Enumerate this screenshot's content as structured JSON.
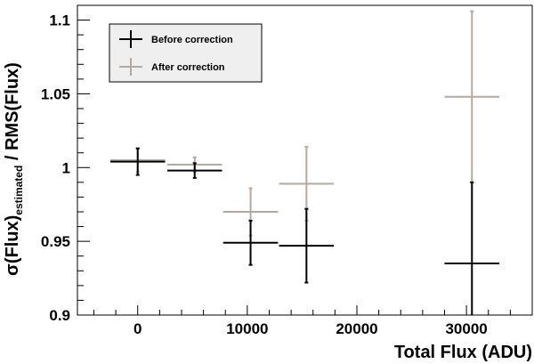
{
  "chart_data": {
    "type": "scatter",
    "xlabel": "Total Flux (ADU)",
    "ylabel": "σ(Flux)estimated / RMS(Flux)",
    "ylabel_parts": {
      "main": "σ(Flux)",
      "subscript": "estimated",
      "rest": " / RMS(Flux)"
    },
    "xlim": [
      -5500,
      36000
    ],
    "ylim": [
      0.9,
      1.11
    ],
    "xticks": [
      {
        "value": 0,
        "label": "0"
      },
      {
        "value": 10000,
        "label": "10000"
      },
      {
        "value": 20000,
        "label": "20000"
      },
      {
        "value": 30000,
        "label": "30000"
      }
    ],
    "yticks": [
      {
        "value": 0.9,
        "label": "0.9"
      },
      {
        "value": 0.95,
        "label": "0.95"
      },
      {
        "value": 1.0,
        "label": "1"
      },
      {
        "value": 1.05,
        "label": "1.05"
      },
      {
        "value": 1.1,
        "label": "1.1"
      }
    ],
    "grid": false,
    "legend_position": "top-left",
    "series": [
      {
        "name": "Before correction",
        "color": "#000000",
        "points": [
          {
            "x": 0,
            "xerr": 2500,
            "y": 1.004,
            "yerr": 0.009
          },
          {
            "x": 5200,
            "xerr": 2500,
            "y": 0.998,
            "yerr": 0.005
          },
          {
            "x": 10300,
            "xerr": 2500,
            "y": 0.949,
            "yerr": 0.015
          },
          {
            "x": 15400,
            "xerr": 2500,
            "y": 0.947,
            "yerr": 0.025
          },
          {
            "x": 30500,
            "xerr": 2500,
            "y": 0.935,
            "yerr": 0.055
          }
        ]
      },
      {
        "name": "After correction",
        "color": "#b5a89f",
        "points": [
          {
            "x": 0,
            "xerr": 2500,
            "y": 1.005,
            "yerr": 0.008
          },
          {
            "x": 5200,
            "xerr": 2500,
            "y": 1.002,
            "yerr": 0.005
          },
          {
            "x": 10300,
            "xerr": 2500,
            "y": 0.97,
            "yerr": 0.016
          },
          {
            "x": 15400,
            "xerr": 2500,
            "y": 0.989,
            "yerr": 0.025
          },
          {
            "x": 30500,
            "xerr": 2500,
            "y": 1.048,
            "yerr": 0.058
          }
        ]
      }
    ]
  }
}
